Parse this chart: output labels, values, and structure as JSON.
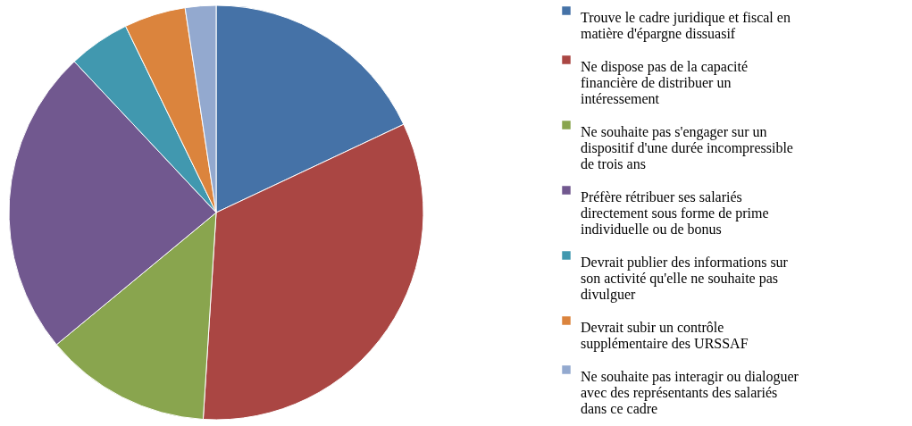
{
  "chart_data": {
    "type": "pie",
    "categories": [
      "Trouve le cadre juridique et fiscal en matière d'épargne dissuasif",
      "Ne dispose pas de la capacité financière de distribuer un intéressement",
      "Ne souhaite pas s'engager sur un dispositif d'une durée incompressible de trois ans",
      "Préfère rétribuer ses salariés directement sous forme de prime individuelle ou de bonus",
      "Devrait publier des informations sur son activité qu'elle ne souhaite pas divulguer",
      "Devrait subir un contrôle supplémentaire des URSSAF",
      "Ne souhaite pas interagir ou dialoguer avec des représentants des salariés dans ce cadre"
    ],
    "values": [
      18,
      33,
      13,
      24,
      4.8,
      4.8,
      2.4
    ],
    "colors": [
      "#4572a7",
      "#aa4643",
      "#89a54e",
      "#71588f",
      "#4198af",
      "#db843d",
      "#93a9cf"
    ],
    "legend": "right"
  }
}
